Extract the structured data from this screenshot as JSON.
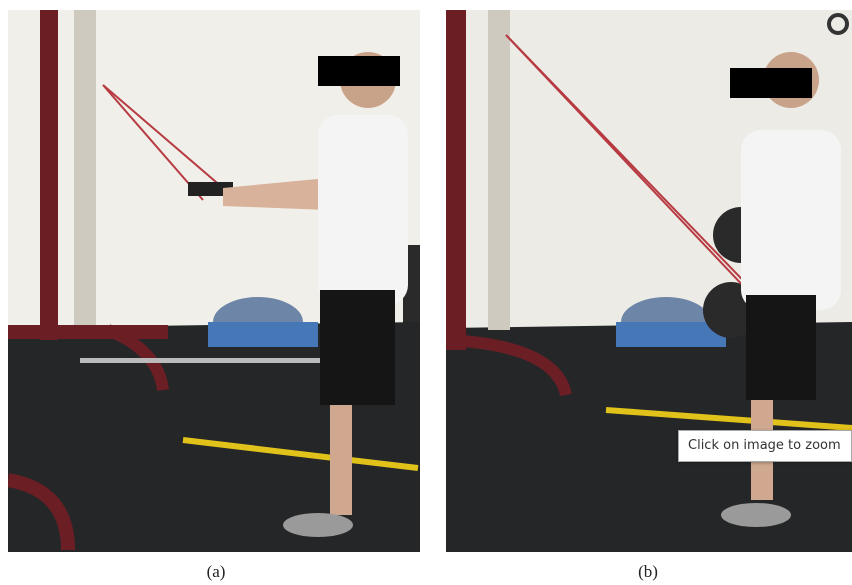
{
  "figure": {
    "panels": [
      {
        "label": "(a)"
      },
      {
        "label": "(b)"
      }
    ],
    "tooltip": "Click on image to zoom"
  }
}
